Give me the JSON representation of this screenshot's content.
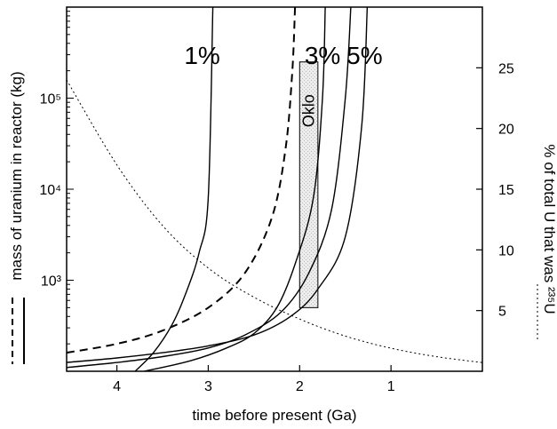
{
  "chart_data": {
    "type": "line",
    "title": "",
    "xlabel": "time before present (Ga)",
    "ylabel_left": "mass of uranium in reactor (kg)",
    "ylabel_right": "% of total U that was ²³⁵U",
    "xlim": [
      4.55,
      0
    ],
    "x_reversed": true,
    "x_ticks": [
      4,
      3,
      2,
      1
    ],
    "x_tick_labels": [
      "4",
      "3",
      "2",
      "1"
    ],
    "ylim_left": [
      100,
      1000000
    ],
    "y_scale_left": "log",
    "y_ticks_left": [
      1000,
      10000,
      100000
    ],
    "y_tick_labels_left": [
      "10³",
      "10⁴",
      "10⁵"
    ],
    "ylim_right": [
      0,
      30
    ],
    "y_ticks_right": [
      5,
      10,
      15,
      20,
      25
    ],
    "y_tick_labels_right": [
      "5",
      "10",
      "15",
      "20",
      "25"
    ],
    "grid": false,
    "legend": {
      "placement": "left, rotated beside axis title",
      "entries": [
        {
          "style": "dashed"
        },
        {
          "style": "solid"
        }
      ]
    },
    "right_legend": {
      "style": "dotted",
      "placement": "right, beside axis title"
    },
    "series": [
      {
        "label": "1%",
        "axis": "left",
        "style": "solid",
        "x": [
          3.8,
          3.6,
          3.4,
          3.25,
          3.1,
          3.0,
          2.95
        ],
        "y": [
          100,
          160,
          320,
          700,
          2000,
          8000,
          1000000
        ]
      },
      {
        "axis": "left",
        "style": "dashed",
        "x": [
          4.55,
          4.0,
          3.5,
          3.0,
          2.6,
          2.3,
          2.15,
          2.08,
          2.05
        ],
        "y": [
          160,
          200,
          280,
          500,
          1200,
          5000,
          30000,
          200000,
          1000000
        ]
      },
      {
        "label": "3%",
        "axis": "left",
        "style": "solid",
        "x": [
          3.7,
          3.2,
          2.8,
          2.5,
          2.25,
          2.05,
          1.85,
          1.75,
          1.72
        ],
        "y": [
          100,
          130,
          180,
          260,
          500,
          1500,
          8000,
          100000,
          1000000
        ]
      },
      {
        "axis": "left",
        "style": "solid",
        "x": [
          4.55,
          4.0,
          3.5,
          3.0,
          2.6,
          2.2,
          1.9,
          1.65,
          1.5,
          1.44
        ],
        "y": [
          110,
          125,
          145,
          180,
          250,
          450,
          1200,
          6000,
          100000,
          1000000
        ]
      },
      {
        "label": "5%",
        "axis": "left",
        "style": "solid",
        "x": [
          4.55,
          4.0,
          3.5,
          3.0,
          2.5,
          2.1,
          1.8,
          1.5,
          1.32,
          1.26
        ],
        "y": [
          125,
          140,
          160,
          190,
          250,
          400,
          800,
          3000,
          50000,
          1000000
        ]
      },
      {
        "axis": "right",
        "style": "dotted",
        "x": [
          4.55,
          4.0,
          3.5,
          3.0,
          2.5,
          2.0,
          1.5,
          1.0,
          0.5,
          0.0
        ],
        "y": [
          24,
          17,
          12,
          8.5,
          6.1,
          4.3,
          2.9,
          1.9,
          1.2,
          0.72
        ]
      }
    ],
    "annotations": [
      {
        "text": "Oklo",
        "kind": "shaded-box",
        "x_range": [
          2.0,
          1.8
        ],
        "y_range_left": [
          500,
          250000
        ]
      }
    ]
  }
}
